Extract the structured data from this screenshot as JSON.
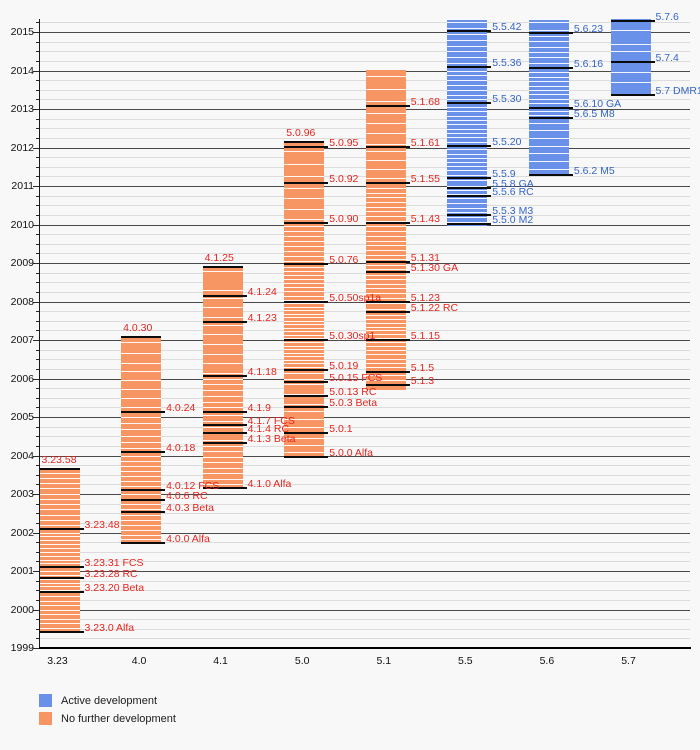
{
  "chart_data": {
    "type": "bar",
    "subtype": "version-lifecycle-timeline",
    "y_axis": {
      "min": 1999,
      "max": 2015,
      "major_step": 1,
      "minor_step": 0.25,
      "plot_top_year": 2015.35
    },
    "x_categories": [
      "3.23",
      "4.0",
      "4.1",
      "5.0",
      "5.1",
      "5.5",
      "5.6",
      "5.7"
    ],
    "legend": [
      {
        "label": "Active development",
        "status": "active"
      },
      {
        "label": "No further development",
        "status": "eol"
      }
    ],
    "colors": {
      "active_bar": "#6a91ea",
      "eol_bar": "#f89663",
      "active_label": "#3465c8",
      "eol_label": "#e8241e",
      "release_line": "#0b0b0b",
      "grid_major": "#4a4a4a",
      "grid_minor": "#dcdcdc",
      "background": "#f8f8f8"
    },
    "columns": [
      {
        "version": "3.23",
        "status": "eol",
        "start": 1999.42,
        "end": 2003.65,
        "releases": [
          {
            "label": "3.23.58",
            "year": 2003.65,
            "placement": "top"
          },
          {
            "label": "3.23.48",
            "year": 2002.09
          },
          {
            "label": "3.23.31 FCS",
            "year": 2001.1
          },
          {
            "label": "3.23.28 RC",
            "year": 2000.82
          },
          {
            "label": "3.23.20 Beta",
            "year": 2000.45
          },
          {
            "label": "3.23.0 Alfa",
            "year": 1999.42
          }
        ],
        "stripe_runs": [
          [
            1999.52,
            2000.35,
            8
          ],
          [
            2000.5,
            2001.0,
            6
          ],
          [
            2001.2,
            2002.0,
            9
          ],
          [
            2002.2,
            2003.0,
            7
          ],
          [
            2003.15,
            2003.55,
            4
          ]
        ]
      },
      {
        "version": "4.0",
        "status": "eol",
        "start": 2001.73,
        "end": 2007.08,
        "releases": [
          {
            "label": "4.0.30",
            "year": 2007.08,
            "placement": "top"
          },
          {
            "label": "4.0.24",
            "year": 2005.13
          },
          {
            "label": "4.0.18",
            "year": 2004.09
          },
          {
            "label": "4.0.12 FCS",
            "year": 2003.1
          },
          {
            "label": "4.0.6 RC",
            "year": 2002.84
          },
          {
            "label": "4.0.3 Beta",
            "year": 2002.53
          },
          {
            "label": "4.0.0 Alfa",
            "year": 2001.73
          }
        ],
        "stripe_runs": [
          [
            2001.82,
            2002.45,
            6
          ],
          [
            2002.6,
            2003.0,
            4
          ],
          [
            2003.2,
            2004.0,
            7
          ],
          [
            2004.2,
            2005.0,
            6
          ],
          [
            2005.25,
            2006.2,
            5
          ],
          [
            2006.4,
            2006.95,
            3
          ]
        ]
      },
      {
        "version": "4.1",
        "status": "eol",
        "start": 2003.16,
        "end": 2008.9,
        "releases": [
          {
            "label": "4.1.25",
            "year": 2008.9,
            "placement": "top"
          },
          {
            "label": "4.1.24",
            "year": 2008.15
          },
          {
            "label": "4.1.23",
            "year": 2007.47
          },
          {
            "label": "4.1.18",
            "year": 2006.06
          },
          {
            "label": "4.1.9",
            "year": 2005.13
          },
          {
            "label": "4.1.7 FCS",
            "year": 2004.79
          },
          {
            "label": "4.1.4 RC",
            "year": 2004.58
          },
          {
            "label": "4.1.3 Beta",
            "year": 2004.32
          },
          {
            "label": "4.1.0 Alfa",
            "year": 2003.16
          }
        ],
        "stripe_runs": [
          [
            2003.25,
            2004.25,
            8
          ],
          [
            2004.4,
            2004.75,
            3
          ],
          [
            2004.9,
            2005.05,
            2
          ],
          [
            2005.25,
            2006.0,
            6
          ],
          [
            2006.15,
            2007.4,
            6
          ],
          [
            2007.6,
            2008.1,
            3
          ],
          [
            2008.3,
            2008.8,
            2
          ]
        ]
      },
      {
        "version": "5.0",
        "status": "eol",
        "start": 2003.96,
        "end": 2012.14,
        "releases": [
          {
            "label": "5.0.96",
            "year": 2012.14,
            "placement": "top"
          },
          {
            "label": "5.0.95",
            "year": 2012.01
          },
          {
            "label": "5.0.92",
            "year": 2011.08
          },
          {
            "label": "5.0.90",
            "year": 2010.04
          },
          {
            "label": "5.0.76",
            "year": 2008.97
          },
          {
            "label": "5.0.50sp1a",
            "year": 2007.99
          },
          {
            "label": "5.0.30sp1",
            "year": 2007.0
          },
          {
            "label": "5.0.19",
            "year": 2006.22
          },
          {
            "label": "5.0.15 FCS",
            "year": 2005.91
          },
          {
            "label": "5.0.13 RC",
            "year": 2005.55
          },
          {
            "label": "5.0.3 Beta",
            "year": 2005.26
          },
          {
            "label": "5.0.1",
            "year": 2004.58
          },
          {
            "label": "5.0.0 Alfa",
            "year": 2003.96
          }
        ],
        "stripe_runs": [
          [
            2004.1,
            2004.45,
            3
          ],
          [
            2004.75,
            2005.15,
            3
          ],
          [
            2005.35,
            2005.85,
            3
          ],
          [
            2006.0,
            2006.15,
            2
          ],
          [
            2006.3,
            2006.95,
            8
          ],
          [
            2007.05,
            2007.95,
            11
          ],
          [
            2008.05,
            2008.9,
            9
          ],
          [
            2009.05,
            2009.95,
            8
          ],
          [
            2010.15,
            2010.95,
            4
          ],
          [
            2011.25,
            2011.9,
            3
          ]
        ]
      },
      {
        "version": "5.1",
        "status": "eol",
        "start": 2005.7,
        "end": 2014.01,
        "releases": [
          {
            "label": "5.1.68",
            "year": 2013.08
          },
          {
            "label": "5.1.61",
            "year": 2012.01
          },
          {
            "label": "5.1.55",
            "year": 2011.08
          },
          {
            "label": "5.1.43",
            "year": 2010.04
          },
          {
            "label": "5.1.31",
            "year": 2009.03
          },
          {
            "label": "5.1.30 GA",
            "year": 2008.77
          },
          {
            "label": "5.1.23",
            "year": 2007.99
          },
          {
            "label": "5.1.22 RC",
            "year": 2007.73
          },
          {
            "label": "5.1.15",
            "year": 2007.0
          },
          {
            "label": "5.1.5",
            "year": 2006.17
          },
          {
            "label": "5.1.3",
            "year": 2005.82
          }
        ],
        "stripe_runs": [
          [
            2005.95,
            2006.1,
            2
          ],
          [
            2006.3,
            2006.95,
            7
          ],
          [
            2007.05,
            2007.65,
            7
          ],
          [
            2007.8,
            2007.95,
            2
          ],
          [
            2008.1,
            2008.7,
            6
          ],
          [
            2008.85,
            2008.95,
            2
          ],
          [
            2009.1,
            2009.95,
            8
          ],
          [
            2010.1,
            2010.95,
            8
          ],
          [
            2011.2,
            2011.9,
            4
          ],
          [
            2012.1,
            2012.9,
            4
          ],
          [
            2013.2,
            2013.85,
            3
          ]
        ]
      },
      {
        "version": "5.5",
        "status": "active",
        "start": 2009.97,
        "end": 2015.31,
        "releases": [
          {
            "label": "5.5.42",
            "year": 2015.03
          },
          {
            "label": "5.5.36",
            "year": 2014.09
          },
          {
            "label": "5.5.30",
            "year": 2013.16
          },
          {
            "label": "5.5.20",
            "year": 2012.04
          },
          {
            "label": "5.5.9",
            "year": 2011.21
          },
          {
            "label": "5.5.8 GA",
            "year": 2010.95
          },
          {
            "label": "5.5.6 RC",
            "year": 2010.74
          },
          {
            "label": "5.5.3 M3",
            "year": 2010.25
          },
          {
            "label": "5.5.0 M2",
            "year": 2010.01
          }
        ],
        "stripe_runs": [
          [
            2010.07,
            2010.2,
            2
          ],
          [
            2010.32,
            2010.68,
            4
          ],
          [
            2010.8,
            2010.9,
            2
          ],
          [
            2011.0,
            2011.15,
            2
          ],
          [
            2011.3,
            2011.95,
            7
          ],
          [
            2012.15,
            2013.05,
            9
          ],
          [
            2013.25,
            2014.0,
            7
          ],
          [
            2014.2,
            2014.95,
            6
          ],
          [
            2015.1,
            2015.25,
            2
          ]
        ]
      },
      {
        "version": "5.6",
        "status": "active",
        "start": 2011.29,
        "end": 2015.31,
        "releases": [
          {
            "label": "5.6.23",
            "year": 2014.97
          },
          {
            "label": "5.6.16",
            "year": 2014.06
          },
          {
            "label": "5.6.10 GA",
            "year": 2013.03
          },
          {
            "label": "5.6.5 M8",
            "year": 2012.77
          },
          {
            "label": "5.6.2 M5",
            "year": 2011.29
          }
        ],
        "stripe_runs": [
          [
            2011.45,
            2012.65,
            7
          ],
          [
            2012.85,
            2012.95,
            2
          ],
          [
            2013.15,
            2013.95,
            8
          ],
          [
            2014.2,
            2014.9,
            6
          ],
          [
            2015.05,
            2015.25,
            2
          ]
        ]
      },
      {
        "version": "5.7",
        "status": "active",
        "start": 2013.36,
        "end": 2015.34,
        "releases": [
          {
            "label": "5.7.6",
            "year": 2015.29
          },
          {
            "label": "5.7.4",
            "year": 2014.22
          },
          {
            "label": "5.7 DMR1",
            "year": 2013.36
          }
        ],
        "stripe_runs": [
          [
            2013.7,
            2013.95,
            2
          ],
          [
            2014.5,
            2014.7,
            2
          ],
          [
            2015.0,
            2015.1,
            1
          ]
        ]
      }
    ]
  }
}
